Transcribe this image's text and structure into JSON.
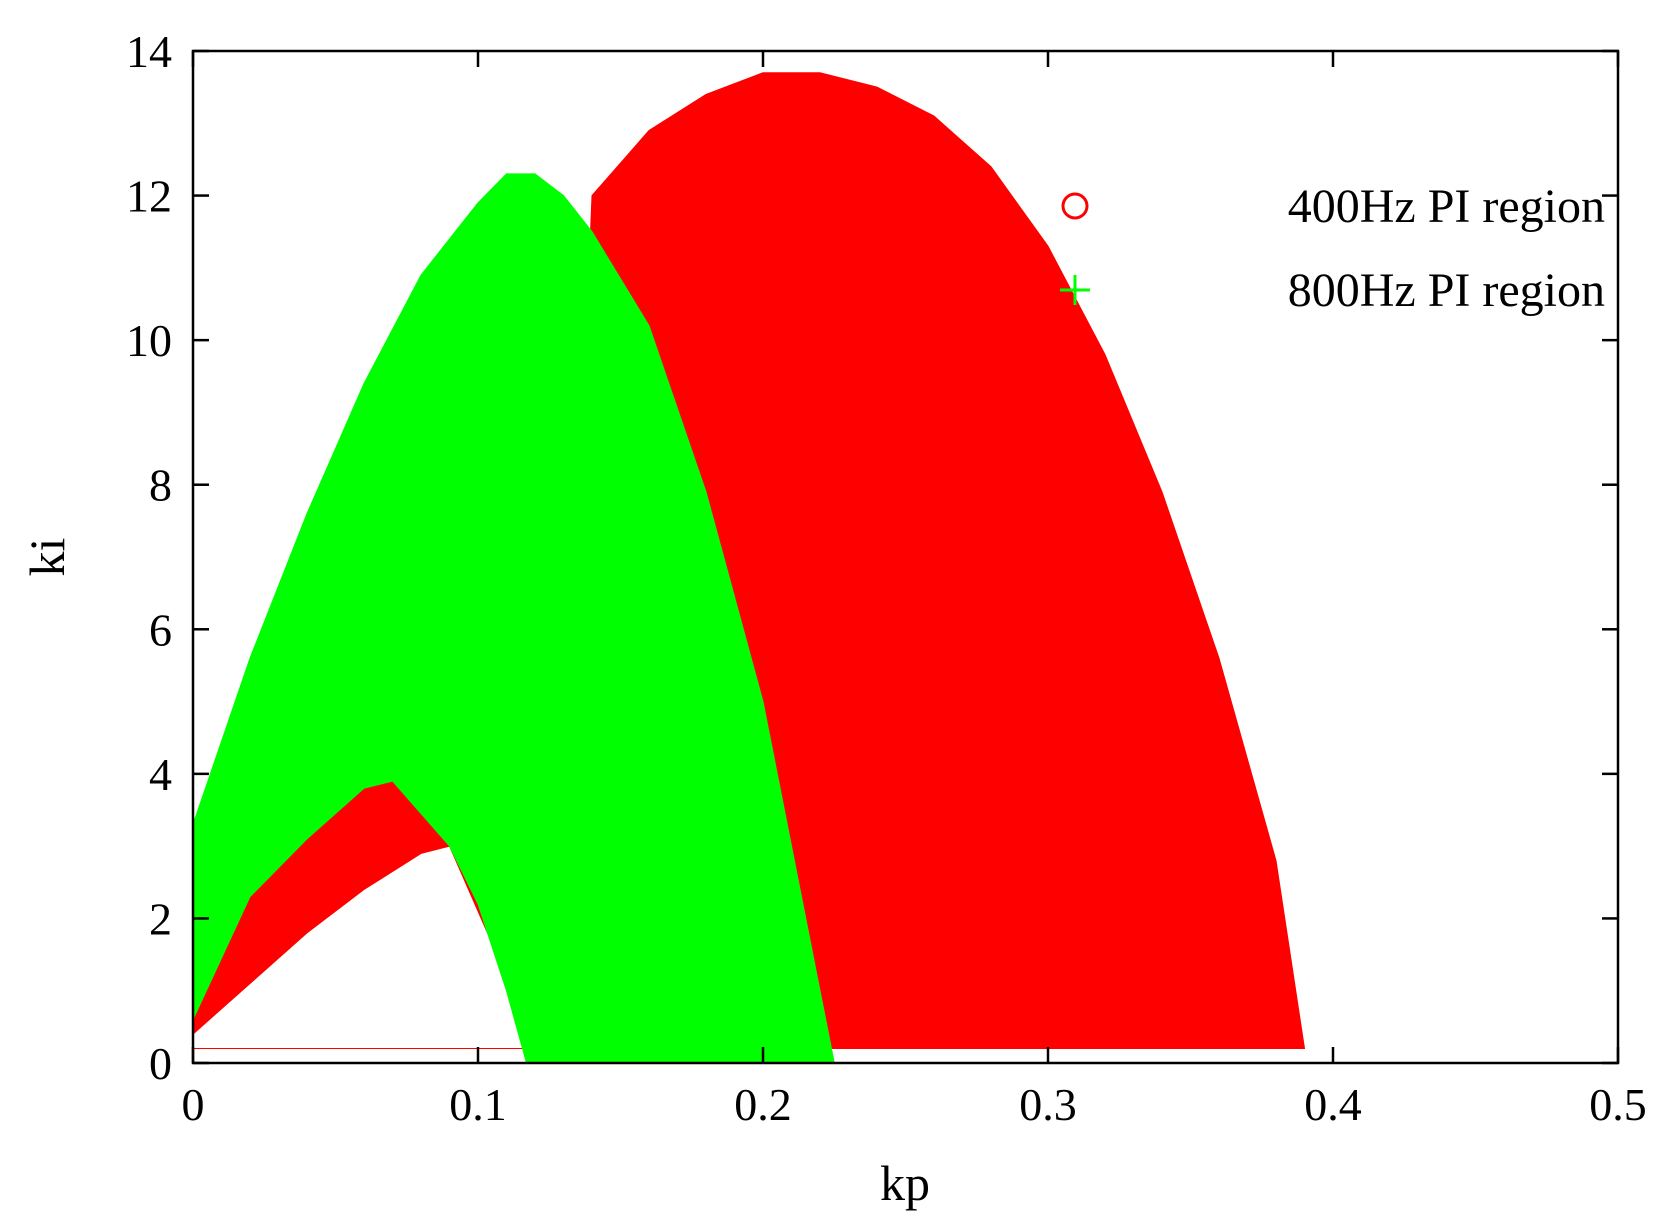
{
  "chart_data": {
    "type": "area",
    "xlabel": "kp",
    "ylabel": "ki",
    "xlim": [
      0,
      0.5
    ],
    "ylim": [
      0,
      14
    ],
    "x_ticks": [
      {
        "value": 0,
        "label": "0"
      },
      {
        "value": 0.1,
        "label": "0.1"
      },
      {
        "value": 0.2,
        "label": "0.2"
      },
      {
        "value": 0.3,
        "label": "0.3"
      },
      {
        "value": 0.4,
        "label": "0.4"
      },
      {
        "value": 0.5,
        "label": "0.5"
      }
    ],
    "y_ticks": [
      {
        "value": 0,
        "label": "0"
      },
      {
        "value": 2,
        "label": "2"
      },
      {
        "value": 4,
        "label": "4"
      },
      {
        "value": 6,
        "label": "6"
      },
      {
        "value": 8,
        "label": "8"
      },
      {
        "value": 10,
        "label": "10"
      },
      {
        "value": 12,
        "label": "12"
      },
      {
        "value": 14,
        "label": "14"
      }
    ],
    "grid": false,
    "legend_position": "top-right",
    "series": [
      {
        "name": "400Hz PI region",
        "marker": "circle",
        "color": "#ff0000",
        "outer_boundary": [
          [
            0.0,
            0.4
          ],
          [
            0.0,
            1.8
          ],
          [
            0.02,
            2.4
          ],
          [
            0.04,
            3.1
          ],
          [
            0.06,
            3.8
          ],
          [
            0.07,
            3.9
          ],
          [
            0.08,
            3.6
          ],
          [
            0.09,
            3.2
          ],
          [
            0.1,
            2.9
          ],
          [
            0.11,
            2.2
          ],
          [
            0.12,
            1.5
          ],
          [
            0.13,
            2.2
          ],
          [
            0.14,
            12.0
          ],
          [
            0.16,
            12.9
          ],
          [
            0.18,
            13.4
          ],
          [
            0.2,
            13.7
          ],
          [
            0.22,
            13.7
          ],
          [
            0.24,
            13.5
          ],
          [
            0.26,
            13.1
          ],
          [
            0.28,
            12.4
          ],
          [
            0.3,
            11.3
          ],
          [
            0.32,
            9.8
          ],
          [
            0.34,
            7.9
          ],
          [
            0.36,
            5.6
          ],
          [
            0.38,
            2.8
          ],
          [
            0.39,
            0.2
          ],
          [
            0.0,
            0.2
          ]
        ],
        "inner_hole": [
          [
            0.0,
            0.4
          ],
          [
            0.02,
            1.1
          ],
          [
            0.04,
            1.8
          ],
          [
            0.06,
            2.4
          ],
          [
            0.08,
            2.9
          ],
          [
            0.09,
            3.0
          ],
          [
            0.11,
            1.2
          ],
          [
            0.12,
            0.2
          ],
          [
            0.0,
            0.2
          ]
        ]
      },
      {
        "name": "800Hz PI region",
        "marker": "plus",
        "color": "#00ff00",
        "outer_boundary": [
          [
            0.0,
            0.6
          ],
          [
            0.0,
            3.3
          ],
          [
            0.02,
            5.6
          ],
          [
            0.04,
            7.6
          ],
          [
            0.06,
            9.4
          ],
          [
            0.08,
            10.9
          ],
          [
            0.1,
            11.9
          ],
          [
            0.11,
            12.3
          ],
          [
            0.12,
            12.3
          ],
          [
            0.13,
            12.0
          ],
          [
            0.14,
            11.5
          ],
          [
            0.16,
            10.2
          ],
          [
            0.18,
            7.9
          ],
          [
            0.2,
            5.0
          ],
          [
            0.21,
            3.0
          ],
          [
            0.22,
            1.0
          ],
          [
            0.225,
            0.0
          ],
          [
            0.117,
            0.0
          ],
          [
            0.11,
            1.0
          ],
          [
            0.1,
            2.2
          ],
          [
            0.09,
            3.0
          ],
          [
            0.07,
            3.9
          ],
          [
            0.06,
            3.8
          ],
          [
            0.04,
            3.1
          ],
          [
            0.02,
            2.3
          ],
          [
            0.0,
            0.6
          ]
        ]
      }
    ]
  }
}
